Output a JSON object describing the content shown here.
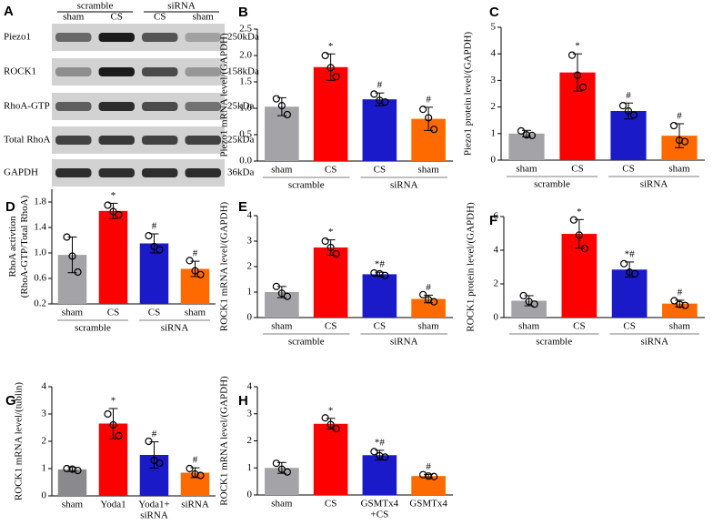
{
  "blot": {
    "panel": "A",
    "groups": [
      "scramble",
      "siRNA"
    ],
    "lanes": [
      "sham",
      "CS",
      "CS",
      "sham"
    ],
    "rows": [
      {
        "name": "Piezo1",
        "size": "250kDa"
      },
      {
        "name": "ROCK1",
        "size": "158kDa"
      },
      {
        "name": "RhoA-GTP",
        "size": "25kDa"
      },
      {
        "name": "Total RhoA",
        "size": "25kDa"
      },
      {
        "name": "GAPDH",
        "size": "36kDa"
      }
    ]
  },
  "chart_data": [
    {
      "type": "bar",
      "panel": "B",
      "ylabel": "Piezo1 mRNA level/(GAPDH)",
      "categories": [
        "sham",
        "CS",
        "CS",
        "sham"
      ],
      "groups": [
        "scramble",
        "siRNA"
      ],
      "colors": [
        "#a3a3a8",
        "#ff0000",
        "#1a1ac8",
        "#ff6a00"
      ],
      "values": [
        1.03,
        1.78,
        1.17,
        0.8
      ],
      "errors": [
        0.17,
        0.25,
        0.12,
        0.22
      ],
      "points": [
        [
          1.18,
          1.05,
          0.88
        ],
        [
          2.0,
          1.77,
          1.6
        ],
        [
          1.27,
          1.15,
          1.12
        ],
        [
          0.98,
          0.82,
          0.6
        ]
      ],
      "annotations": [
        null,
        "*",
        "#",
        "#"
      ],
      "ylim": [
        0,
        2.5
      ],
      "yticks": [
        {
          "value": 0,
          "label": "0.0"
        },
        0.5,
        {
          "value": 1,
          "label": "1.0"
        },
        1.5,
        {
          "value": 2,
          "label": "2.0"
        },
        2.5
      ]
    },
    {
      "type": "bar",
      "panel": "C",
      "ylabel": "Piezo1 protein level/(GAPDH)",
      "categories": [
        "sham",
        "CS",
        "CS",
        "sham"
      ],
      "groups": [
        "scramble",
        "siRNA"
      ],
      "colors": [
        "#a3a3a8",
        "#ff0000",
        "#1a1ac8",
        "#ff6a00"
      ],
      "values": [
        1.0,
        3.3,
        1.85,
        0.92
      ],
      "errors": [
        0.12,
        0.7,
        0.3,
        0.45
      ],
      "points": [
        [
          1.1,
          0.95,
          0.93
        ],
        [
          3.95,
          3.2,
          2.75
        ],
        [
          2.05,
          1.85,
          1.7
        ],
        [
          1.3,
          0.75,
          0.7
        ]
      ],
      "annotations": [
        null,
        "*",
        "#",
        "#"
      ],
      "ylim": [
        0,
        5
      ],
      "yticks": [
        0,
        1,
        2,
        3,
        4,
        5
      ]
    },
    {
      "type": "bar",
      "panel": "D",
      "ylabel": [
        "RhoA activtion",
        "(RhoA-GTP/Total RhoA)"
      ],
      "categories": [
        "sham",
        "CS",
        "CS",
        "sham"
      ],
      "groups": [
        "scramble",
        "siRNA"
      ],
      "colors": [
        "#a3a3a8",
        "#ff0000",
        "#1a1ac8",
        "#ff6a00"
      ],
      "values": [
        0.97,
        1.66,
        1.15,
        0.75
      ],
      "errors": [
        0.28,
        0.12,
        0.15,
        0.12
      ],
      "points": [
        [
          1.25,
          0.95,
          0.7
        ],
        [
          1.75,
          1.65,
          1.6
        ],
        [
          1.27,
          1.1,
          1.05
        ],
        [
          0.88,
          0.72,
          0.66
        ]
      ],
      "annotations": [
        null,
        "*",
        "#",
        "#"
      ],
      "ylim": [
        0.2,
        2.0
      ],
      "yticks": [
        0.2,
        0.6,
        {
          "value": 1,
          "label": "1.0"
        },
        1.4,
        1.8
      ]
    },
    {
      "type": "bar",
      "panel": "E",
      "ylabel": "ROCK1 mRNA level/(GAPDH)",
      "categories": [
        "sham",
        "CS",
        "CS",
        "sham"
      ],
      "groups": [
        "scramble",
        "siRNA"
      ],
      "colors": [
        "#a3a3a8",
        "#ff0000",
        "#1a1ac8",
        "#ff6a00"
      ],
      "values": [
        1.0,
        2.75,
        1.7,
        0.73
      ],
      "errors": [
        0.22,
        0.3,
        0.08,
        0.15
      ],
      "points": [
        [
          1.22,
          0.95,
          0.83
        ],
        [
          3.0,
          2.75,
          2.5
        ],
        [
          1.75,
          1.72,
          1.65
        ],
        [
          0.9,
          0.7,
          0.62
        ]
      ],
      "annotations": [
        null,
        "*",
        "*#",
        "#"
      ],
      "ylim": [
        0,
        4
      ],
      "yticks": [
        0,
        1,
        2,
        3,
        4
      ]
    },
    {
      "type": "bar",
      "panel": "F",
      "ylabel": "ROCK1 protein level/(GAPDH)",
      "categories": [
        "sham",
        "CS",
        "CS",
        "sham"
      ],
      "groups": [
        "scramble",
        "siRNA"
      ],
      "colors": [
        "#a3a3a8",
        "#ff0000",
        "#1a1ac8",
        "#ff6a00"
      ],
      "values": [
        1.0,
        4.97,
        2.85,
        0.83
      ],
      "errors": [
        0.3,
        0.85,
        0.45,
        0.2
      ],
      "points": [
        [
          1.3,
          0.95,
          0.8
        ],
        [
          5.8,
          4.9,
          4.1
        ],
        [
          3.2,
          2.7,
          2.6
        ],
        [
          1.0,
          0.78,
          0.72
        ]
      ],
      "annotations": [
        null,
        "*",
        "*#",
        "#"
      ],
      "ylim": [
        0,
        6
      ],
      "yticks": [
        0,
        2,
        4,
        6
      ]
    },
    {
      "type": "bar",
      "panel": "G",
      "ylabel": "ROCK1 mRNA level/(tublin)",
      "categories": [
        [
          "sham"
        ],
        [
          "Yoda1"
        ],
        [
          "Yoda1+",
          "siRNA"
        ],
        [
          "siRNA"
        ]
      ],
      "colors": [
        "#8a8a8e",
        "#ff0000",
        "#1a1ac8",
        "#ff6a00"
      ],
      "values": [
        0.97,
        2.65,
        1.5,
        0.85
      ],
      "errors": [
        0.07,
        0.55,
        0.48,
        0.18
      ],
      "points": [
        [
          1.0,
          0.98,
          0.93
        ],
        [
          3.0,
          2.6,
          2.2
        ],
        [
          2.0,
          1.3,
          1.2
        ],
        [
          1.0,
          0.8,
          0.75
        ]
      ],
      "annotations": [
        null,
        "*",
        "#",
        "#"
      ],
      "ylim": [
        0,
        4
      ],
      "yticks": [
        0,
        1,
        2,
        3,
        4
      ]
    },
    {
      "type": "bar",
      "panel": "H",
      "ylabel": "ROCK1 mRNA level/(GAPDH)",
      "categories": [
        [
          "sham"
        ],
        [
          "CS"
        ],
        [
          "GSMTx4",
          "+CS"
        ],
        [
          "GSMTx4"
        ]
      ],
      "colors": [
        "#a3a3a8",
        "#ff0000",
        "#1a1ac8",
        "#ff6a00"
      ],
      "values": [
        1.0,
        2.63,
        1.47,
        0.7
      ],
      "errors": [
        0.2,
        0.2,
        0.18,
        0.06
      ],
      "points": [
        [
          1.17,
          0.95,
          0.85
        ],
        [
          2.85,
          2.6,
          2.45
        ],
        [
          1.6,
          1.45,
          1.4
        ],
        [
          0.75,
          0.7,
          0.68
        ]
      ],
      "annotations": [
        null,
        "*",
        "*#",
        "#"
      ],
      "ylim": [
        0,
        4
      ],
      "yticks": [
        0,
        1,
        2,
        3,
        4
      ]
    }
  ]
}
